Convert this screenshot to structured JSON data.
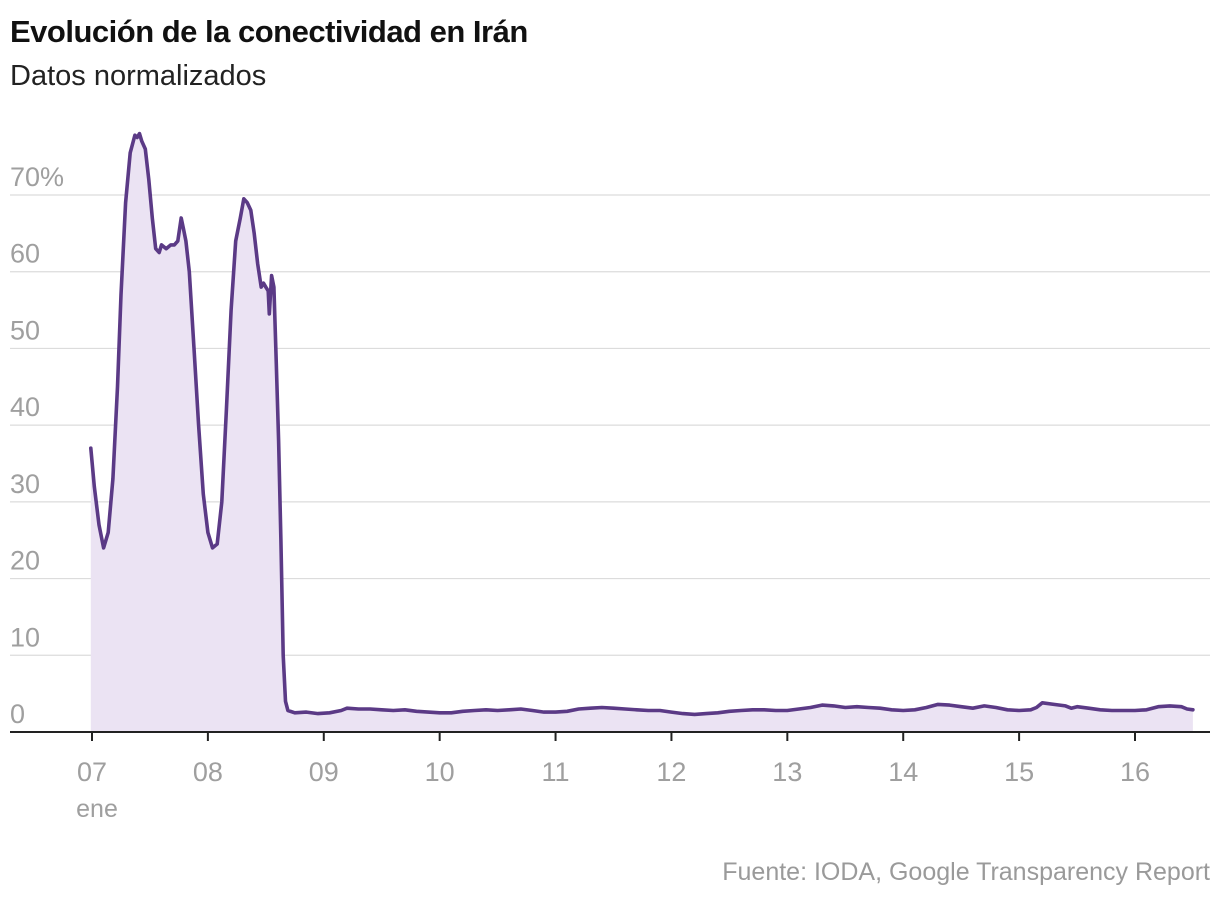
{
  "header": {
    "title": "Evolución de la conectividad en Irán",
    "subtitle": "Datos normalizados"
  },
  "footer": {
    "source": "Fuente: IODA, Google Transparency Report"
  },
  "colors": {
    "line": "#5b3a86",
    "area": "#ebe3f3",
    "grid": "#dcdcdc",
    "axis": "#222222",
    "tick_text": "#9f9f9f"
  },
  "chart_data": {
    "type": "area",
    "title": "Evolución de la conectividad en Irán",
    "subtitle": "Datos normalizados",
    "xlabel": "",
    "ylabel": "",
    "ylim": [
      0,
      80
    ],
    "xlim": [
      6.95,
      16.55
    ],
    "grid": true,
    "y_ticks": [
      {
        "value": 0,
        "label": "0"
      },
      {
        "value": 10,
        "label": "10"
      },
      {
        "value": 20,
        "label": "20"
      },
      {
        "value": 30,
        "label": "30"
      },
      {
        "value": 40,
        "label": "40"
      },
      {
        "value": 50,
        "label": "50"
      },
      {
        "value": 60,
        "label": "60"
      },
      {
        "value": 70,
        "label": "70%"
      }
    ],
    "x_ticks": [
      {
        "value": 7,
        "label": "07",
        "sublabel": "ene"
      },
      {
        "value": 8,
        "label": "08"
      },
      {
        "value": 9,
        "label": "09"
      },
      {
        "value": 10,
        "label": "10"
      },
      {
        "value": 11,
        "label": "11"
      },
      {
        "value": 12,
        "label": "12"
      },
      {
        "value": 13,
        "label": "13"
      },
      {
        "value": 14,
        "label": "14"
      },
      {
        "value": 15,
        "label": "15"
      },
      {
        "value": 16,
        "label": "16"
      }
    ],
    "series": [
      {
        "points": [
          [
            6.99,
            37
          ],
          [
            7.02,
            32
          ],
          [
            7.06,
            27
          ],
          [
            7.1,
            24
          ],
          [
            7.14,
            26
          ],
          [
            7.18,
            33
          ],
          [
            7.22,
            45
          ],
          [
            7.25,
            57
          ],
          [
            7.29,
            69
          ],
          [
            7.33,
            75.5
          ],
          [
            7.37,
            77.8
          ],
          [
            7.39,
            77.5
          ],
          [
            7.41,
            78
          ],
          [
            7.43,
            77
          ],
          [
            7.46,
            76
          ],
          [
            7.49,
            72
          ],
          [
            7.52,
            67
          ],
          [
            7.55,
            63
          ],
          [
            7.58,
            62.5
          ],
          [
            7.6,
            63.5
          ],
          [
            7.64,
            63
          ],
          [
            7.68,
            63.5
          ],
          [
            7.71,
            63.5
          ],
          [
            7.74,
            64
          ],
          [
            7.77,
            67
          ],
          [
            7.79,
            65.5
          ],
          [
            7.81,
            64
          ],
          [
            7.84,
            60
          ],
          [
            7.88,
            50
          ],
          [
            7.92,
            40
          ],
          [
            7.96,
            31
          ],
          [
            8.0,
            26
          ],
          [
            8.04,
            24
          ],
          [
            8.08,
            24.5
          ],
          [
            8.12,
            30
          ],
          [
            8.16,
            42
          ],
          [
            8.2,
            55
          ],
          [
            8.24,
            64
          ],
          [
            8.28,
            67
          ],
          [
            8.31,
            69.5
          ],
          [
            8.34,
            69
          ],
          [
            8.37,
            68
          ],
          [
            8.4,
            65
          ],
          [
            8.43,
            61
          ],
          [
            8.46,
            58
          ],
          [
            8.48,
            58.5
          ],
          [
            8.5,
            58
          ],
          [
            8.52,
            57.5
          ],
          [
            8.53,
            54.5
          ],
          [
            8.55,
            59.5
          ],
          [
            8.57,
            58
          ],
          [
            8.59,
            48
          ],
          [
            8.61,
            38
          ],
          [
            8.63,
            25
          ],
          [
            8.65,
            10
          ],
          [
            8.67,
            4
          ],
          [
            8.69,
            2.8
          ],
          [
            8.75,
            2.5
          ],
          [
            8.85,
            2.6
          ],
          [
            8.95,
            2.4
          ],
          [
            9.05,
            2.5
          ],
          [
            9.15,
            2.8
          ],
          [
            9.2,
            3.1
          ],
          [
            9.3,
            3.0
          ],
          [
            9.4,
            3.0
          ],
          [
            9.5,
            2.9
          ],
          [
            9.6,
            2.8
          ],
          [
            9.7,
            2.9
          ],
          [
            9.8,
            2.7
          ],
          [
            9.9,
            2.6
          ],
          [
            10.0,
            2.5
          ],
          [
            10.1,
            2.5
          ],
          [
            10.2,
            2.7
          ],
          [
            10.3,
            2.8
          ],
          [
            10.4,
            2.9
          ],
          [
            10.5,
            2.8
          ],
          [
            10.6,
            2.9
          ],
          [
            10.7,
            3.0
          ],
          [
            10.8,
            2.8
          ],
          [
            10.9,
            2.6
          ],
          [
            11.0,
            2.6
          ],
          [
            11.1,
            2.7
          ],
          [
            11.2,
            3.0
          ],
          [
            11.3,
            3.1
          ],
          [
            11.4,
            3.2
          ],
          [
            11.5,
            3.1
          ],
          [
            11.6,
            3.0
          ],
          [
            11.7,
            2.9
          ],
          [
            11.8,
            2.8
          ],
          [
            11.9,
            2.8
          ],
          [
            12.0,
            2.6
          ],
          [
            12.1,
            2.4
          ],
          [
            12.2,
            2.3
          ],
          [
            12.3,
            2.4
          ],
          [
            12.4,
            2.5
          ],
          [
            12.5,
            2.7
          ],
          [
            12.6,
            2.8
          ],
          [
            12.7,
            2.9
          ],
          [
            12.8,
            2.9
          ],
          [
            12.9,
            2.8
          ],
          [
            13.0,
            2.8
          ],
          [
            13.1,
            3.0
          ],
          [
            13.2,
            3.2
          ],
          [
            13.3,
            3.5
          ],
          [
            13.4,
            3.4
          ],
          [
            13.5,
            3.2
          ],
          [
            13.6,
            3.3
          ],
          [
            13.7,
            3.2
          ],
          [
            13.8,
            3.1
          ],
          [
            13.9,
            2.9
          ],
          [
            14.0,
            2.8
          ],
          [
            14.1,
            2.9
          ],
          [
            14.2,
            3.2
          ],
          [
            14.3,
            3.6
          ],
          [
            14.4,
            3.5
          ],
          [
            14.5,
            3.3
          ],
          [
            14.6,
            3.1
          ],
          [
            14.7,
            3.4
          ],
          [
            14.8,
            3.2
          ],
          [
            14.9,
            2.9
          ],
          [
            15.0,
            2.8
          ],
          [
            15.1,
            2.9
          ],
          [
            15.15,
            3.2
          ],
          [
            15.2,
            3.8
          ],
          [
            15.3,
            3.6
          ],
          [
            15.4,
            3.4
          ],
          [
            15.45,
            3.1
          ],
          [
            15.5,
            3.3
          ],
          [
            15.6,
            3.1
          ],
          [
            15.7,
            2.9
          ],
          [
            15.8,
            2.8
          ],
          [
            15.9,
            2.8
          ],
          [
            16.0,
            2.8
          ],
          [
            16.1,
            2.9
          ],
          [
            16.2,
            3.3
          ],
          [
            16.3,
            3.4
          ],
          [
            16.4,
            3.3
          ],
          [
            16.45,
            3.0
          ],
          [
            16.5,
            2.9
          ]
        ]
      }
    ]
  }
}
